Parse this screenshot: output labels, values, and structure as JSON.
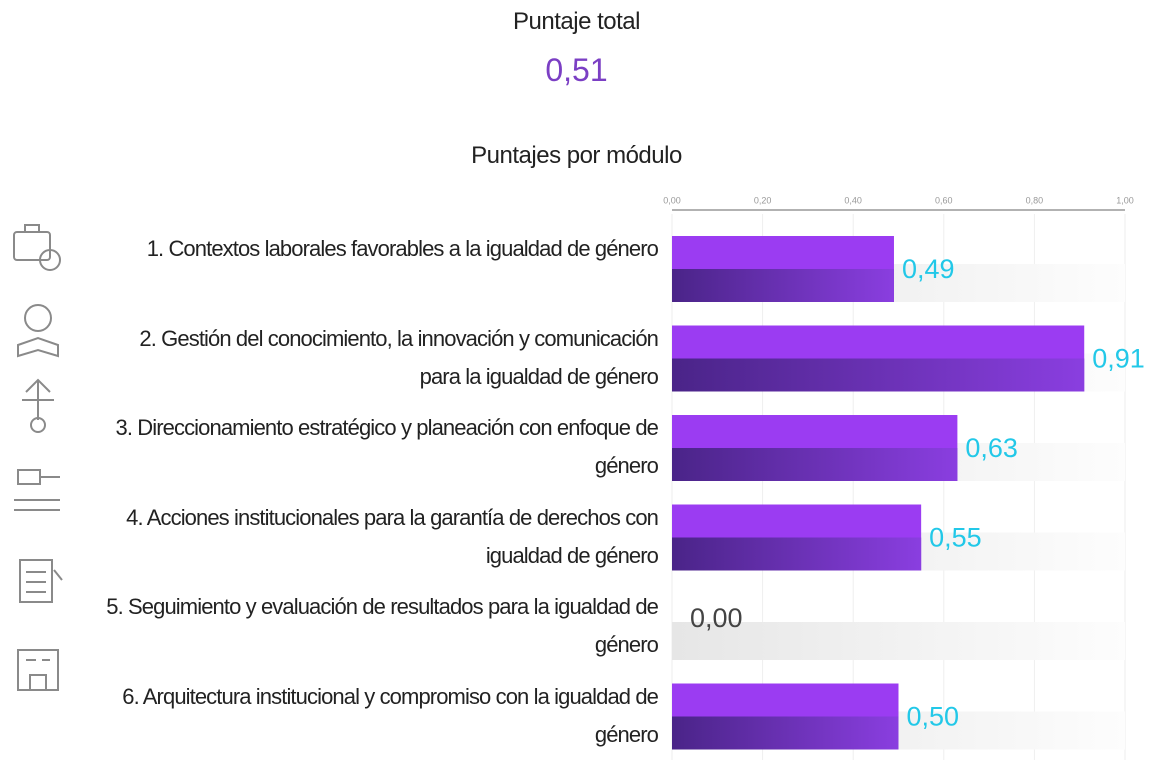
{
  "summary": {
    "label": "Puntaje total",
    "value": "0,51"
  },
  "chart_data": {
    "type": "hbar",
    "title": "Puntajes por módulo",
    "categories": [
      "1. Contextos laborales favorables a la igualdad de género",
      "2. Gestión del conocimiento, la innovación y comunicación para la igualdad de género",
      "3. Direccionamiento estratégico y planeación con enfoque de género",
      "4. Acciones institucionales para la garantía de derechos con igualdad de género",
      "5. Seguimiento y evaluación de resultados para la igualdad de género",
      "6. Arquitectura institucional y compromiso con la igualdad de género"
    ],
    "values": [
      0.49,
      0.91,
      0.63,
      0.55,
      0,
      0.5
    ],
    "value_labels": [
      "0,49",
      "0,91",
      "0,63",
      "0,55",
      "0,00",
      "0,50"
    ],
    "color": "#9b3cf2",
    "label_color": "#22c8e8",
    "xlim": [
      0,
      1
    ],
    "xticks": [
      {
        "value": 0,
        "label": "0,00"
      },
      {
        "value": 0.2,
        "label": "0,20"
      },
      {
        "value": 0.4,
        "label": "0,40"
      },
      {
        "value": 0.6,
        "label": "0,60"
      },
      {
        "value": 0.8,
        "label": "0,80"
      },
      {
        "value": 1,
        "label": "1,00"
      }
    ],
    "grid": true
  }
}
